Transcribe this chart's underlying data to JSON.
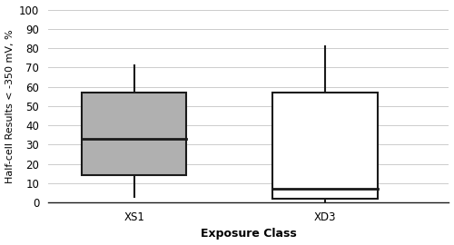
{
  "xs1": {
    "whisker_low": 3,
    "q1": 14,
    "median": 33,
    "q3": 57,
    "whisker_high": 71,
    "color": "#B0B0B0",
    "label": "XS1"
  },
  "xd3": {
    "whisker_low": 0,
    "q1": 2,
    "median": 7,
    "q3": 57,
    "whisker_high": 81,
    "color": "#FFFFFF",
    "label": "XD3"
  },
  "ylabel": "Half-cell Results < -350 mV, %",
  "xlabel": "Exposure Class",
  "ylim": [
    0,
    100
  ],
  "yticks": [
    0,
    10,
    20,
    30,
    40,
    50,
    60,
    70,
    80,
    90,
    100
  ],
  "background_color": "#FFFFFF",
  "box_width": 0.55,
  "linecolor": "#1A1A1A",
  "linewidth": 1.5,
  "grid_color": "#CCCCCC",
  "grid_lw": 0.7,
  "xlabel_fontsize": 9,
  "ylabel_fontsize": 8,
  "tick_fontsize": 8.5
}
